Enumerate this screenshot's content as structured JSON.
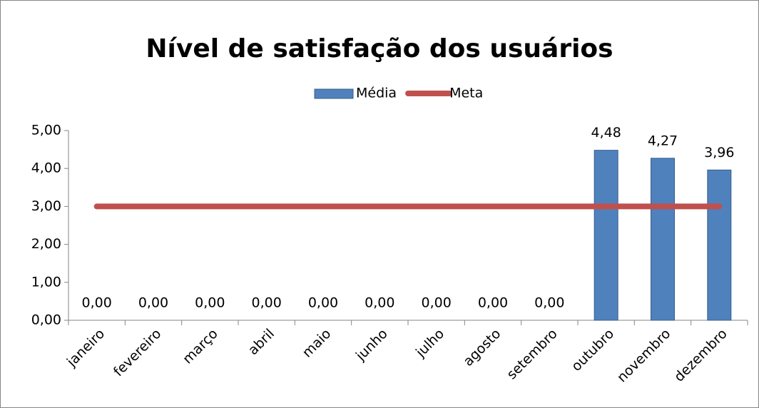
{
  "chart_data": {
    "type": "bar",
    "title": "Nível de satisfação dos usuários",
    "categories": [
      "janeiro",
      "fevereiro",
      "março",
      "abril",
      "maio",
      "junho",
      "julho",
      "agosto",
      "setembro",
      "outubro",
      "novembro",
      "dezembro"
    ],
    "series": [
      {
        "name": "Média",
        "type": "bar",
        "color": "#4f81bd",
        "values": [
          0,
          0,
          0,
          0,
          0,
          0,
          0,
          0,
          0,
          4.48,
          4.27,
          3.96
        ],
        "value_labels": [
          "0,00",
          "0,00",
          "0,00",
          "0,00",
          "0,00",
          "0,00",
          "0,00",
          "0,00",
          "0,00",
          "4,48",
          "4,27",
          "3,96"
        ]
      },
      {
        "name": "Meta",
        "type": "line",
        "color": "#c0504d",
        "values": [
          3,
          3,
          3,
          3,
          3,
          3,
          3,
          3,
          3,
          3,
          3,
          3
        ]
      }
    ],
    "ylim": [
      0,
      5
    ],
    "yticks": [
      {
        "value": 0,
        "label": "0,00"
      },
      {
        "value": 1,
        "label": "1,00"
      },
      {
        "value": 2,
        "label": "2,00"
      },
      {
        "value": 3,
        "label": "3,00"
      },
      {
        "value": 4,
        "label": "4,00"
      },
      {
        "value": 5,
        "label": "5,00"
      }
    ],
    "legend": "top"
  }
}
